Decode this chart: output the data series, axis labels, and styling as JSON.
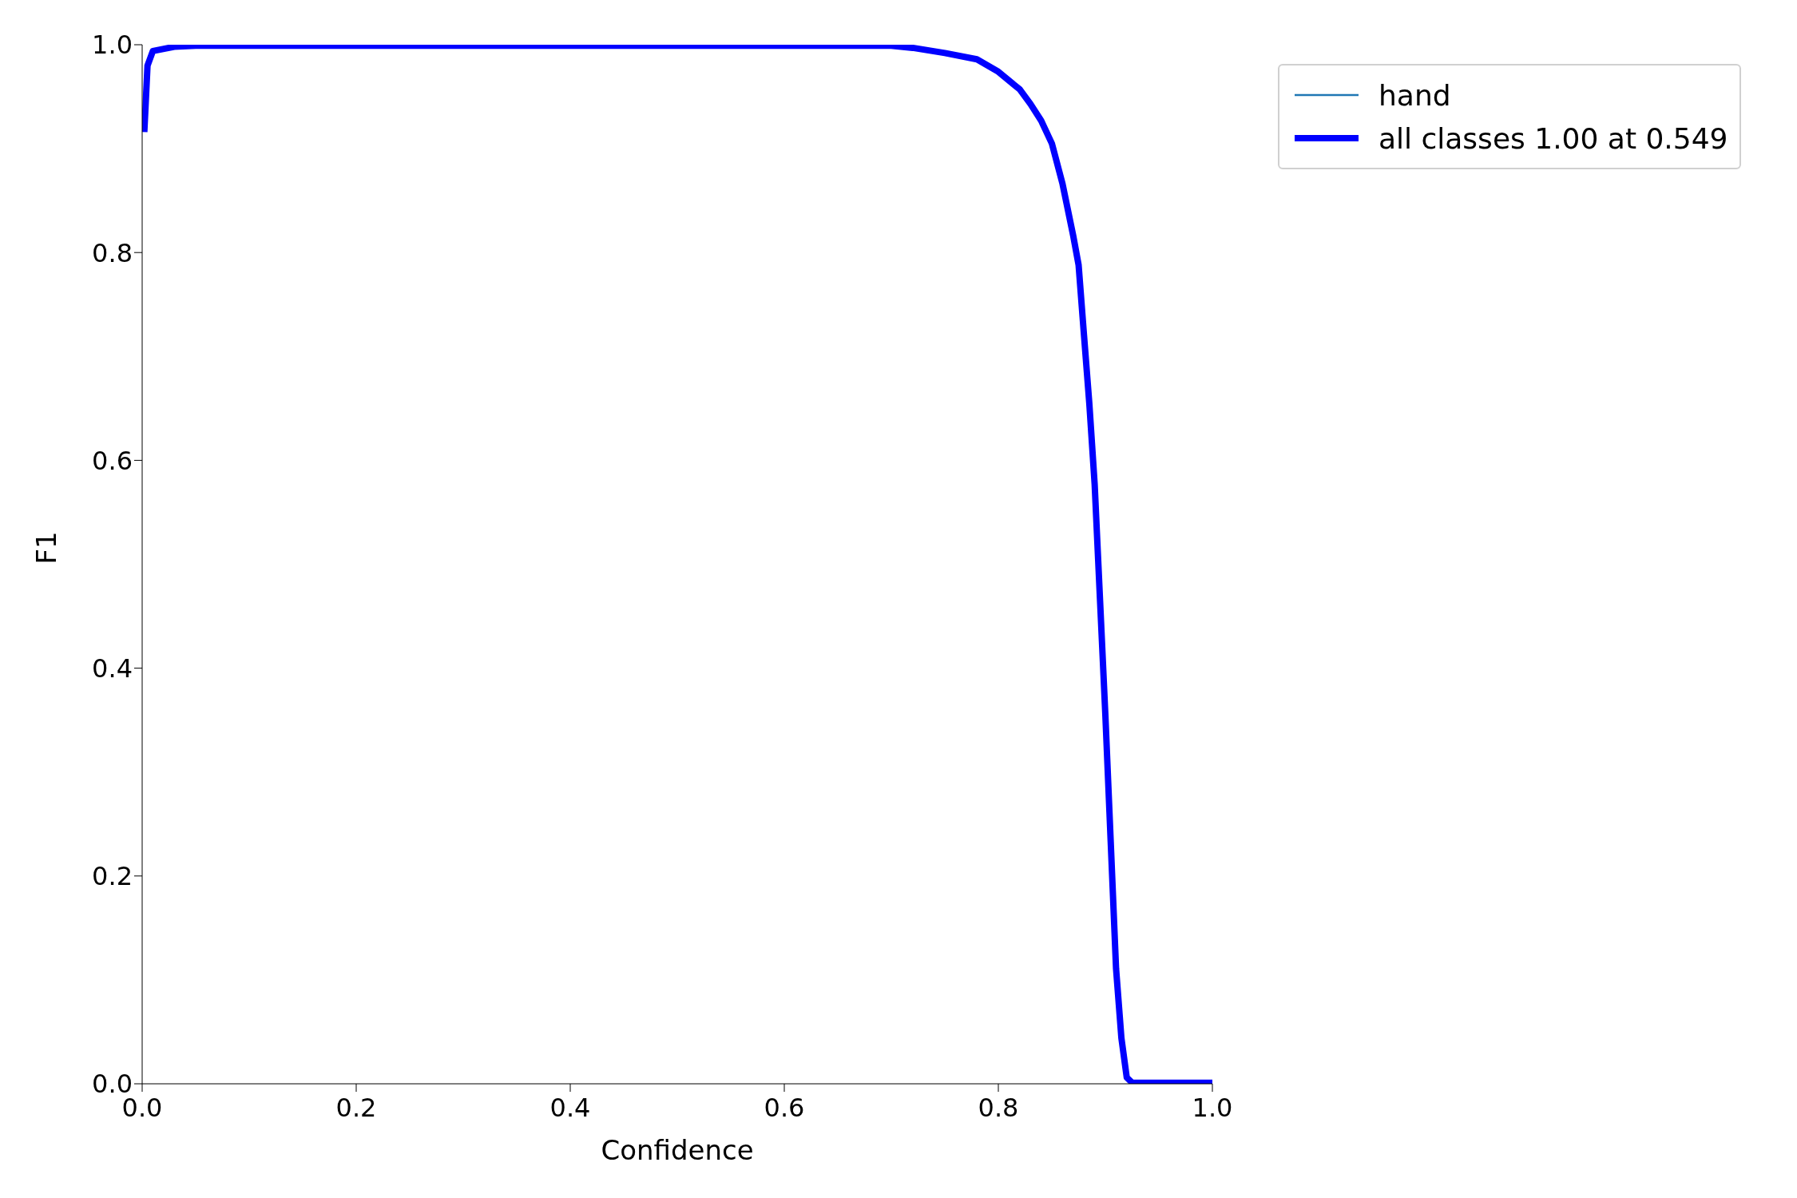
{
  "chart_data": {
    "type": "line",
    "xlabel": "Confidence",
    "ylabel": "F1",
    "xlim": [
      0,
      1
    ],
    "ylim": [
      0,
      1
    ],
    "xticks": [
      {
        "value": 0,
        "label": "0.0"
      },
      {
        "value": 0.2,
        "label": "0.2"
      },
      {
        "value": 0.4,
        "label": "0.4"
      },
      {
        "value": 0.6,
        "label": "0.6"
      },
      {
        "value": 0.8,
        "label": "0.8"
      },
      {
        "value": 1,
        "label": "1.0"
      }
    ],
    "yticks": [
      {
        "value": 0,
        "label": "0.0"
      },
      {
        "value": 0.2,
        "label": "0.2"
      },
      {
        "value": 0.4,
        "label": "0.4"
      },
      {
        "value": 0.6,
        "label": "0.6"
      },
      {
        "value": 0.8,
        "label": "0.8"
      },
      {
        "value": 1,
        "label": "1.0"
      }
    ],
    "grid": false,
    "legend": "top right",
    "marker": "none",
    "line_style": "solid",
    "x": [
      0.002,
      0.005,
      0.01,
      0.03,
      0.05,
      0.3,
      0.55,
      0.7,
      0.72,
      0.75,
      0.78,
      0.8,
      0.82,
      0.83,
      0.84,
      0.85,
      0.86,
      0.87,
      0.875,
      0.88,
      0.885,
      0.89,
      0.895,
      0.9,
      0.905,
      0.91,
      0.915,
      0.92,
      0.925,
      1
    ],
    "series": [
      {
        "name": "hand",
        "color": "#1f77b4",
        "values": [
          null,
          null,
          null,
          null,
          null,
          null,
          null,
          null,
          null,
          null,
          null,
          null,
          null,
          null,
          null,
          null,
          null,
          null,
          null,
          null,
          null,
          null,
          null,
          null,
          null,
          null,
          null,
          null,
          null,
          null
        ]
      },
      {
        "name": "all classes 1.00 at 0.549",
        "color": "#0000ff",
        "values": [
          0.916,
          0.98,
          0.994,
          0.998,
          0.999,
          0.999,
          0.999,
          0.999,
          0.997,
          0.992,
          0.986,
          0.974,
          0.957,
          0.943,
          0.927,
          0.905,
          0.866,
          0.816,
          0.788,
          0.721,
          0.655,
          0.577,
          0.466,
          0.355,
          0.233,
          0.111,
          0.044,
          0.006,
          0.001,
          0.001
        ]
      }
    ]
  }
}
